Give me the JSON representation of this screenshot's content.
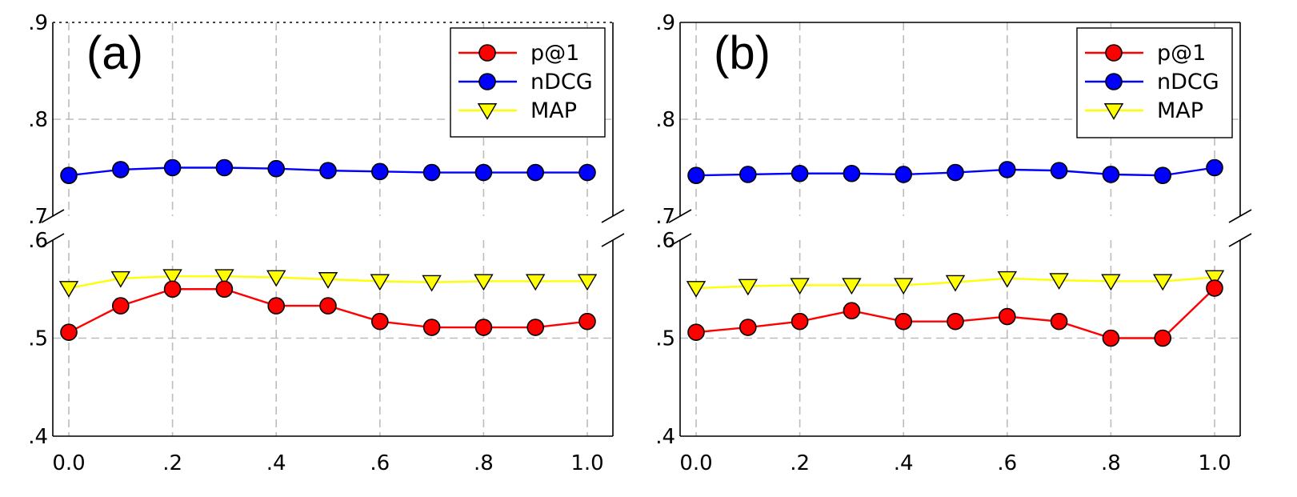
{
  "colors": {
    "p1": "#ff0000",
    "ndcg": "#0000ff",
    "map": "#ffff00",
    "grid": "#bdbdbd",
    "axis": "#000000"
  },
  "chart_data": [
    {
      "type": "line",
      "panel_label": "(a)",
      "categories": [
        0.0,
        0.1,
        0.2,
        0.3,
        0.4,
        0.5,
        0.6,
        0.7,
        0.8,
        0.9,
        1.0
      ],
      "x_tick_labels": [
        "0.0",
        ".2",
        ".4",
        ".6",
        ".8",
        "1.0"
      ],
      "xlim": [
        0,
        1
      ],
      "y_axis_break": {
        "lower": [
          0.4,
          0.6
        ],
        "upper": [
          0.7,
          0.9
        ]
      },
      "y_tick_labels": [
        ".4",
        ".5",
        ".6",
        ".7",
        ".8",
        ".9"
      ],
      "grid": true,
      "legend_position": "top-right",
      "series": [
        {
          "name": "p@1",
          "marker": "circle",
          "color": "#ff0000",
          "values": [
            0.506,
            0.533,
            0.55,
            0.55,
            0.533,
            0.533,
            0.517,
            0.511,
            0.511,
            0.511,
            0.517
          ]
        },
        {
          "name": "nDCG",
          "marker": "circle",
          "color": "#0000ff",
          "values": [
            0.742,
            0.748,
            0.75,
            0.75,
            0.749,
            0.747,
            0.746,
            0.745,
            0.745,
            0.745,
            0.745
          ]
        },
        {
          "name": "MAP",
          "marker": "triangle-down",
          "color": "#ffff00",
          "values": [
            0.551,
            0.561,
            0.563,
            0.563,
            0.562,
            0.56,
            0.558,
            0.557,
            0.558,
            0.558,
            0.558
          ]
        }
      ]
    },
    {
      "type": "line",
      "panel_label": "(b)",
      "categories": [
        0.0,
        0.1,
        0.2,
        0.3,
        0.4,
        0.5,
        0.6,
        0.7,
        0.8,
        0.9,
        1.0
      ],
      "x_tick_labels": [
        "0.0",
        ".2",
        ".4",
        ".6",
        ".8",
        "1.0"
      ],
      "xlim": [
        0,
        1
      ],
      "y_axis_break": {
        "lower": [
          0.4,
          0.6
        ],
        "upper": [
          0.7,
          0.9
        ]
      },
      "y_tick_labels": [
        ".4",
        ".5",
        ".6",
        ".7",
        ".8",
        ".9"
      ],
      "grid": true,
      "legend_position": "top-right",
      "series": [
        {
          "name": "p@1",
          "marker": "circle",
          "color": "#ff0000",
          "values": [
            0.506,
            0.511,
            0.517,
            0.528,
            0.517,
            0.517,
            0.522,
            0.517,
            0.5,
            0.5,
            0.551
          ]
        },
        {
          "name": "nDCG",
          "marker": "circle",
          "color": "#0000ff",
          "values": [
            0.742,
            0.743,
            0.744,
            0.744,
            0.743,
            0.745,
            0.748,
            0.747,
            0.743,
            0.742,
            0.75
          ]
        },
        {
          "name": "MAP",
          "marker": "triangle-down",
          "color": "#ffff00",
          "values": [
            0.551,
            0.553,
            0.554,
            0.554,
            0.554,
            0.557,
            0.561,
            0.559,
            0.558,
            0.558,
            0.562
          ]
        }
      ]
    }
  ]
}
